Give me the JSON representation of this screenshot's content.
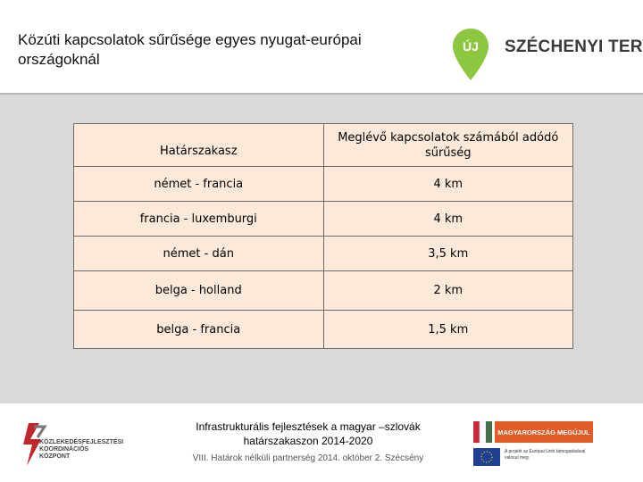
{
  "header": {
    "title": "Közúti kapcsolatok sűrűsége egyes nyugat-európai országoknál",
    "logo": {
      "pin_text": "ÚJ",
      "wordmark": "SZÉCHENYI TERV",
      "accent_color": "#8dc63f"
    }
  },
  "table": {
    "headers": [
      "Határszakasz",
      "Meglévő kapcsolatok számából adódó sűrűség"
    ],
    "rows": [
      [
        "német - francia",
        "4 km"
      ],
      [
        "francia - luxemburgi",
        "4 km"
      ],
      [
        "német - dán",
        "3,5 km"
      ],
      [
        "belga - holland",
        "2 km"
      ],
      [
        "belga - francia",
        "1,5 km"
      ]
    ],
    "cell_color": "#fde9d9"
  },
  "footer": {
    "left_logo_text": "KÖZLEKEDÉSFEJLESZTÉSI KOORDINÁCIÓS KÖZPONT",
    "line1": "Infrastrukturális fejlesztések a magyar –szlovák határszakaszon 2014-2020",
    "line2": "VIII. Határok nélküli partnerség 2014. október 2. Szécsény",
    "mm_banner": "MAGYARORSZÁG MEGÚJUL",
    "eu_text": "A projekt az Európai Unió támogatásával valósul meg."
  }
}
